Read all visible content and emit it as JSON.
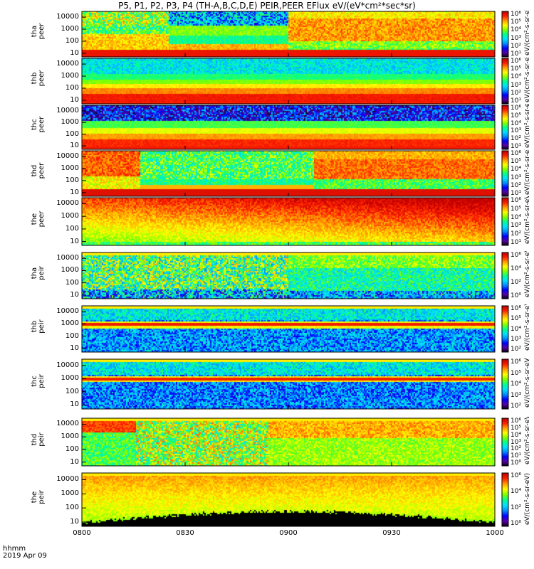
{
  "title": "P5, P1, P2, P3, P4 (TH-A,B,C,D,E) PEIR,PEER EFlux eV/(eV*cm²*sec*sr)",
  "footer": {
    "hhmm": "hhmm",
    "date": "2019 Apr 09"
  },
  "chart_data": {
    "type": "heatmap",
    "x_ticks": [
      "0800",
      "0830",
      "0900",
      "0930",
      "1000"
    ],
    "x_range_minutes": [
      0,
      120
    ],
    "energy_ylim_ev": [
      5,
      30000
    ],
    "log_y": true,
    "panels": [
      {
        "label": "tha\npeer",
        "probe": "a",
        "species": "electron",
        "yticks": [
          "10000",
          "1000",
          "100",
          "10"
        ],
        "cbar": [
          "10⁶",
          "10⁵",
          "10⁴",
          "10³",
          "10²",
          "10¹"
        ],
        "cbar_label": "eV/(cm²-s-sr-eV)"
      },
      {
        "label": "thb\npeer",
        "probe": "b",
        "species": "electron",
        "yticks": [
          "10000",
          "1000",
          "100",
          "10"
        ],
        "cbar": [
          "10⁶",
          "10⁵",
          "10⁴",
          "10³",
          "10²",
          "10¹"
        ],
        "cbar_label": "eV/(cm²-s-sr-eV)"
      },
      {
        "label": "thc\npeer",
        "probe": "c",
        "species": "electron",
        "yticks": [
          "10000",
          "1000",
          "100",
          "10"
        ],
        "cbar": [
          "10⁶",
          "10⁵",
          "10⁴",
          "10³",
          "10²",
          "10¹"
        ],
        "cbar_label": "eV/(cm²-s-sr-eV)"
      },
      {
        "label": "thd\npeer",
        "probe": "d",
        "species": "electron",
        "yticks": [
          "10000",
          "1000",
          "100",
          "10"
        ],
        "cbar": [
          "10⁶",
          "10⁵",
          "10⁴",
          "10³",
          "10²",
          "10¹"
        ],
        "cbar_label": "eV/(cm²-s-sr-eV)"
      },
      {
        "label": "the\npeer",
        "probe": "e",
        "species": "electron",
        "yticks": [
          "10000",
          "1000",
          "100",
          "10"
        ],
        "cbar": [
          "10⁶",
          "10⁵",
          "10⁴",
          "10³",
          "10²",
          "10¹"
        ],
        "cbar_label": "eV/(cm²-s-sr-eV)"
      },
      {
        "label": "tha\npeir",
        "probe": "a",
        "species": "ion",
        "yticks": [
          "10000",
          "1000",
          "100",
          "10"
        ],
        "cbar": [
          "10⁶",
          "10⁴",
          "10²",
          "10⁰"
        ],
        "cbar_label": "eV/(cm²-s-sr-eV)"
      },
      {
        "label": "thb\npeir",
        "probe": "b",
        "species": "ion",
        "yticks": [
          "10000",
          "1000",
          "100",
          "10"
        ],
        "cbar": [
          "10⁶",
          "10⁵",
          "10⁴",
          "10³",
          "10²"
        ],
        "cbar_label": "eV/(cm²-s-sr-eV)"
      },
      {
        "label": "thc\npeir",
        "probe": "c",
        "species": "ion",
        "yticks": [
          "10000",
          "1000",
          "100",
          "10"
        ],
        "cbar": [
          "10⁶",
          "10⁵",
          "10⁴",
          "10³",
          "10²"
        ],
        "cbar_label": "eV/(cm²-s-sr-eV)"
      },
      {
        "label": "thd\npeir",
        "probe": "d",
        "species": "ion",
        "yticks": [
          "10000",
          "1000",
          "100",
          "10"
        ],
        "cbar": [
          "10⁶",
          "10⁵",
          "10⁴",
          "10³",
          "10²",
          "10¹",
          "10⁰"
        ],
        "cbar_label": "eV/(cm²-s-sr-eV)"
      },
      {
        "label": "the\npeir",
        "probe": "e",
        "species": "ion",
        "yticks": [
          "10000",
          "1000",
          "100",
          "10"
        ],
        "cbar": [
          "10⁶",
          "10⁴",
          "10²",
          "10⁰"
        ],
        "cbar_label": "eV/(cm²-s-sr-eV)"
      }
    ],
    "colorbar_palette": [
      "#000000",
      "#5a00a8",
      "#0000ff",
      "#0090ff",
      "#00e0ff",
      "#00ff90",
      "#80ff00",
      "#ffff00",
      "#ffa000",
      "#ff2000",
      "#c00000"
    ]
  }
}
